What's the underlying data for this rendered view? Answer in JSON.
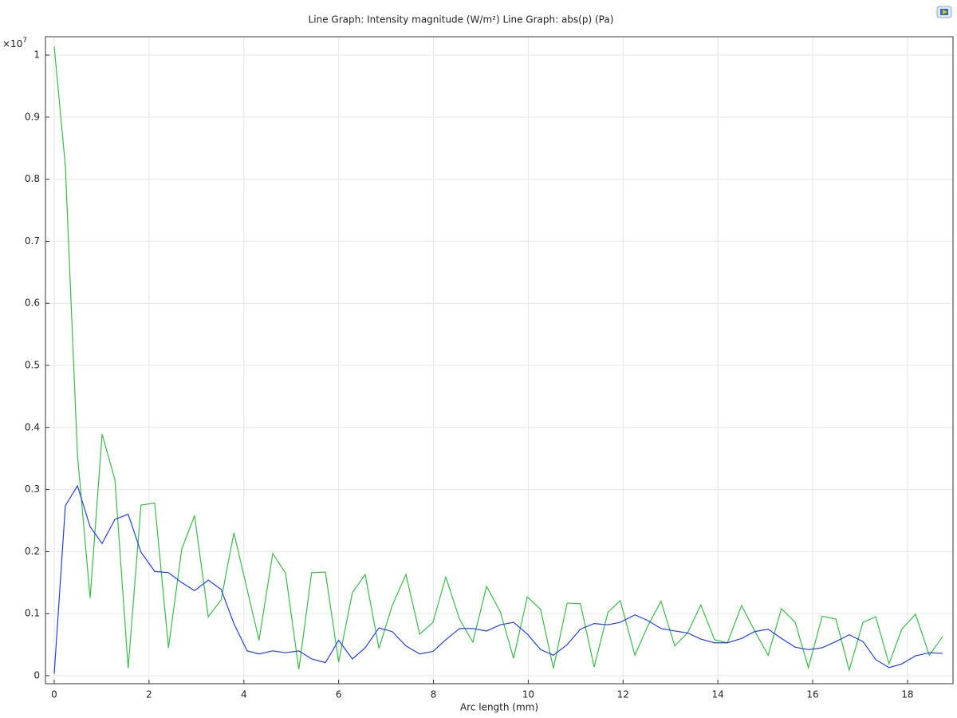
{
  "chart_data": {
    "type": "line",
    "title": "Line Graph: Intensity magnitude (W/m²)  Line Graph: abs(p) (Pa)",
    "x_label": "Arc length (mm)",
    "y_multiplier": {
      "base": "×10",
      "exponent": "7"
    },
    "x": [
      0,
      0.235,
      0.49,
      0.757,
      1.01,
      1.28,
      1.56,
      1.83,
      2.12,
      2.41,
      2.69,
      2.96,
      3.25,
      3.52,
      3.79,
      4.07,
      4.32,
      4.61,
      4.88,
      5.16,
      5.43,
      5.72,
      6.0,
      6.29,
      6.56,
      6.85,
      7.13,
      7.42,
      7.71,
      7.99,
      8.26,
      8.55,
      8.83,
      9.12,
      9.41,
      9.69,
      9.98,
      10.26,
      10.53,
      10.82,
      11.1,
      11.39,
      11.68,
      11.94,
      12.25,
      12.52,
      12.8,
      13.09,
      13.36,
      13.64,
      13.93,
      14.2,
      14.5,
      14.77,
      15.06,
      15.34,
      15.63,
      15.91,
      16.2,
      16.49,
      16.77,
      17.06,
      17.33,
      17.61,
      17.88,
      18.17,
      18.46,
      18.74
    ],
    "series": [
      {
        "color": "#3cba4c",
        "values": [
          1.014,
          0.821,
          0.356,
          0.125,
          0.389,
          0.316,
          0.012,
          0.275,
          0.278,
          0.045,
          0.204,
          0.258,
          0.095,
          0.122,
          0.23,
          0.139,
          0.057,
          0.197,
          0.165,
          0.01,
          0.166,
          0.167,
          0.022,
          0.134,
          0.163,
          0.044,
          0.113,
          0.163,
          0.067,
          0.086,
          0.159,
          0.091,
          0.054,
          0.144,
          0.103,
          0.028,
          0.127,
          0.107,
          0.012,
          0.117,
          0.116,
          0.014,
          0.102,
          0.121,
          0.033,
          0.08,
          0.12,
          0.048,
          0.069,
          0.114,
          0.058,
          0.053,
          0.113,
          0.073,
          0.033,
          0.108,
          0.086,
          0.013,
          0.096,
          0.091,
          0.009,
          0.086,
          0.095,
          0.019,
          0.075,
          0.099,
          0.033,
          0.063
        ]
      },
      {
        "color": "#2340e0",
        "values": [
          0.003,
          0.274,
          0.306,
          0.24,
          0.213,
          0.252,
          0.26,
          0.199,
          0.168,
          0.166,
          0.15,
          0.137,
          0.154,
          0.139,
          0.084,
          0.04,
          0.035,
          0.04,
          0.037,
          0.04,
          0.027,
          0.021,
          0.057,
          0.027,
          0.045,
          0.077,
          0.071,
          0.048,
          0.035,
          0.039,
          0.058,
          0.076,
          0.076,
          0.072,
          0.082,
          0.086,
          0.067,
          0.042,
          0.033,
          0.05,
          0.075,
          0.084,
          0.082,
          0.086,
          0.098,
          0.089,
          0.076,
          0.072,
          0.069,
          0.059,
          0.053,
          0.053,
          0.06,
          0.071,
          0.075,
          0.06,
          0.046,
          0.042,
          0.045,
          0.055,
          0.066,
          0.055,
          0.026,
          0.013,
          0.019,
          0.032,
          0.037,
          0.036
        ]
      }
    ],
    "xlim": [
      -0.185,
      18.96
    ],
    "ylim": [
      -0.0129,
      1.0296
    ],
    "xticks": [
      0,
      2,
      4,
      6,
      8,
      10,
      12,
      14,
      16,
      18
    ],
    "yticks": [
      0,
      0.1,
      0.2,
      0.3,
      0.4,
      0.5,
      0.6,
      0.7,
      0.8,
      0.9,
      1
    ],
    "grid": true
  }
}
